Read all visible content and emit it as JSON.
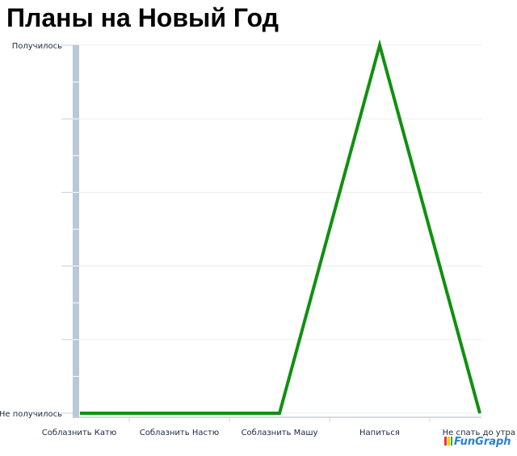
{
  "chart_data": {
    "type": "line",
    "title": "Планы на Новый Год",
    "categories": [
      "Соблазнить Катю",
      "Соблазнить Настю",
      "Соблазнить Машу",
      "Напиться",
      "Не спать до утра"
    ],
    "series": [
      {
        "values": [
          0,
          0,
          0,
          1,
          0
        ],
        "color": "#109010"
      }
    ],
    "y_tick_labels": {
      "0": "Не получилось",
      "1": "Получилось"
    },
    "ylim": [
      0,
      1
    ],
    "grid": true,
    "xlabel": "",
    "ylabel": ""
  },
  "branding": {
    "logo_text": "FunGraph"
  }
}
